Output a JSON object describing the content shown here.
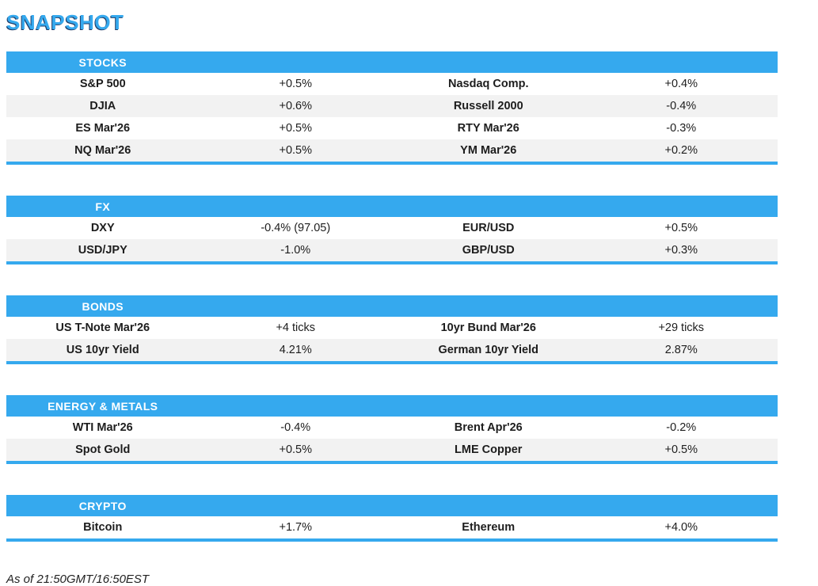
{
  "page_title": "SNAPSHOT",
  "colors": {
    "accent": "#35a9ee",
    "stripe": "#f2f2f2",
    "header_text": "#ffffff",
    "body_text": "#1d1d1d"
  },
  "sections": [
    {
      "header": "STOCKS",
      "rows": [
        {
          "label1": "S&P 500",
          "value1": "+0.5%",
          "label2": "Nasdaq Comp.",
          "value2": "+0.4%"
        },
        {
          "label1": "DJIA",
          "value1": "+0.6%",
          "label2": "Russell 2000",
          "value2": "-0.4%"
        },
        {
          "label1": "ES Mar'26",
          "value1": "+0.5%",
          "label2": "RTY Mar'26",
          "value2": "-0.3%"
        },
        {
          "label1": "NQ Mar'26",
          "value1": "+0.5%",
          "label2": "YM Mar'26",
          "value2": "+0.2%"
        }
      ]
    },
    {
      "header": "FX",
      "rows": [
        {
          "label1": "DXY",
          "value1": "-0.4% (97.05)",
          "label2": "EUR/USD",
          "value2": "+0.5%"
        },
        {
          "label1": "USD/JPY",
          "value1": "-1.0%",
          "label2": "GBP/USD",
          "value2": "+0.3%"
        }
      ]
    },
    {
      "header": "BONDS",
      "rows": [
        {
          "label1": "US T-Note Mar'26",
          "value1": "+4 ticks",
          "label2": "10yr Bund Mar'26",
          "value2": "+29 ticks"
        },
        {
          "label1": "US 10yr Yield",
          "value1": "4.21%",
          "label2": "German 10yr Yield",
          "value2": "2.87%"
        }
      ]
    },
    {
      "header": "ENERGY & METALS",
      "rows": [
        {
          "label1": "WTI Mar'26",
          "value1": "-0.4%",
          "label2": "Brent Apr'26",
          "value2": "-0.2%"
        },
        {
          "label1": "Spot Gold",
          "value1": "+0.5%",
          "label2": "LME Copper",
          "value2": "+0.5%"
        }
      ]
    },
    {
      "header": "CRYPTO",
      "rows": [
        {
          "label1": "Bitcoin",
          "value1": "+1.7%",
          "label2": "Ethereum",
          "value2": "+4.0%"
        }
      ]
    }
  ],
  "footer": "As of 21:50GMT/16:50EST"
}
